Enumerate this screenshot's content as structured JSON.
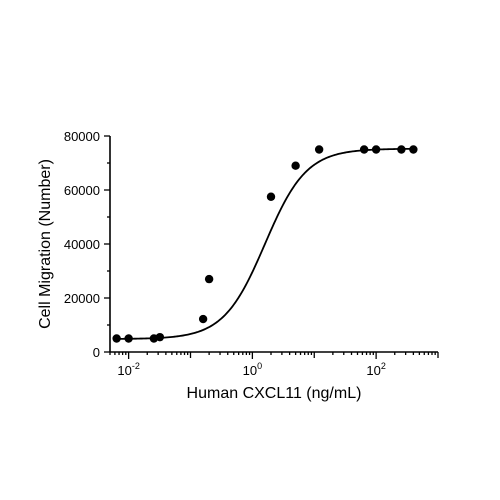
{
  "chart_data": {
    "type": "scatter",
    "xlabel": "Human CXCL11 (ng/mL)",
    "ylabel": "Cell Migration (Number)",
    "x_scale": "log10",
    "xlim": [
      0.005,
      1000
    ],
    "ylim": [
      0,
      80000
    ],
    "y_ticks": [
      0,
      20000,
      40000,
      60000,
      80000
    ],
    "y_tick_labels": [
      "0",
      "20000",
      "40000",
      "60000",
      "80000"
    ],
    "x_major_ticks": [
      0.01,
      1,
      100
    ],
    "x_tick_labels": [
      {
        "base": "10",
        "exp": "-2"
      },
      {
        "base": "10",
        "exp": "0"
      },
      {
        "base": "10",
        "exp": "2"
      }
    ],
    "grid": false,
    "legend": "none",
    "series": [
      {
        "marker": "circle",
        "color": "#000000",
        "x": [
          0.0064,
          0.01,
          0.0256,
          0.032,
          0.16,
          0.2,
          2.0,
          5.0,
          12.0,
          64.0,
          100.0,
          256.0,
          400.0
        ],
        "y": [
          5000,
          5000,
          5000,
          5500,
          12200,
          27000,
          57500,
          69000,
          75000,
          75000,
          75000,
          75000,
          75000
        ]
      }
    ],
    "fit_curve": {
      "model": "4PL",
      "bottom": 4800,
      "top": 75300,
      "ec50": 1.6,
      "hill": 1.3
    }
  }
}
